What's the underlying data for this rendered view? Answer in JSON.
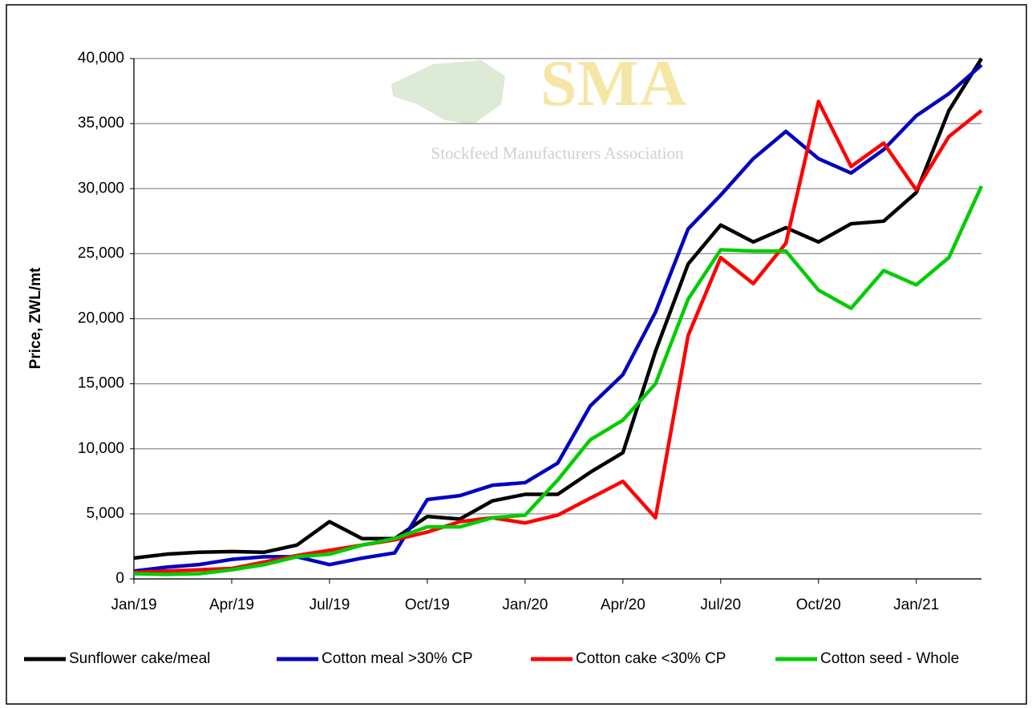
{
  "chart_data": {
    "type": "line",
    "y_label": "Price, ZWL/mt",
    "watermark": {
      "logo": "SMA",
      "name": "Stockfeed Manufacturers Association"
    },
    "categories": [
      "Jan/19",
      null,
      null,
      "Apr/19",
      null,
      null,
      "Jul/19",
      null,
      null,
      "Oct/19",
      null,
      null,
      "Jan/20",
      null,
      null,
      "Apr/20",
      null,
      null,
      "Jul/20",
      null,
      null,
      "Oct/20",
      null,
      null,
      "Jan/21",
      null,
      null
    ],
    "series": [
      {
        "name": "Sunflower cake/meal",
        "color": "#000000",
        "values": [
          1600,
          1900,
          2050,
          2100,
          2050,
          2600,
          4400,
          3100,
          3100,
          4800,
          4600,
          6000,
          6500,
          6500,
          8200,
          9700,
          17500,
          24200,
          27200,
          25900,
          27000,
          25900,
          27300,
          27500,
          29700,
          36000,
          40000
        ]
      },
      {
        "name": "Cotton meal >30% CP",
        "color": "#0000c0",
        "values": [
          600,
          900,
          1100,
          1500,
          1700,
          1700,
          1100,
          1600,
          2000,
          6100,
          6400,
          7200,
          7400,
          8900,
          13300,
          15700,
          20500,
          26900,
          29500,
          32300,
          34400,
          32300,
          31200,
          33000,
          35600,
          37300,
          39500
        ]
      },
      {
        "name": "Cotton cake <30% CP",
        "color": "#ff0000",
        "values": [
          500,
          600,
          700,
          800,
          1300,
          1800,
          2200,
          2600,
          3000,
          3600,
          4400,
          4700,
          4300,
          4900,
          6200,
          7500,
          4700,
          18700,
          24700,
          22700,
          25800,
          36700,
          31700,
          33500,
          29900,
          34000,
          36000
        ]
      },
      {
        "name": "Cotton seed - Whole",
        "color": "#00cc00",
        "values": [
          400,
          350,
          400,
          700,
          1100,
          1700,
          1900,
          2600,
          3100,
          4000,
          4000,
          4700,
          4900,
          7600,
          10700,
          12200,
          15000,
          21500,
          25300,
          25200,
          25200,
          22200,
          20800,
          23700,
          22600,
          24700,
          30200
        ]
      }
    ],
    "ylim": [
      0,
      40000
    ],
    "yticks": [
      0,
      {
        "value": 5000,
        "label": "5,000"
      },
      {
        "value": 10000,
        "label": "10,000"
      },
      {
        "value": 15000,
        "label": "15,000"
      },
      {
        "value": 20000,
        "label": "20,000"
      },
      {
        "value": 25000,
        "label": "25,000"
      },
      {
        "value": 30000,
        "label": "30,000"
      },
      {
        "value": 35000,
        "label": "35,000"
      },
      {
        "value": 40000,
        "label": "40,000"
      }
    ],
    "grid": true,
    "legend": "bottom"
  }
}
